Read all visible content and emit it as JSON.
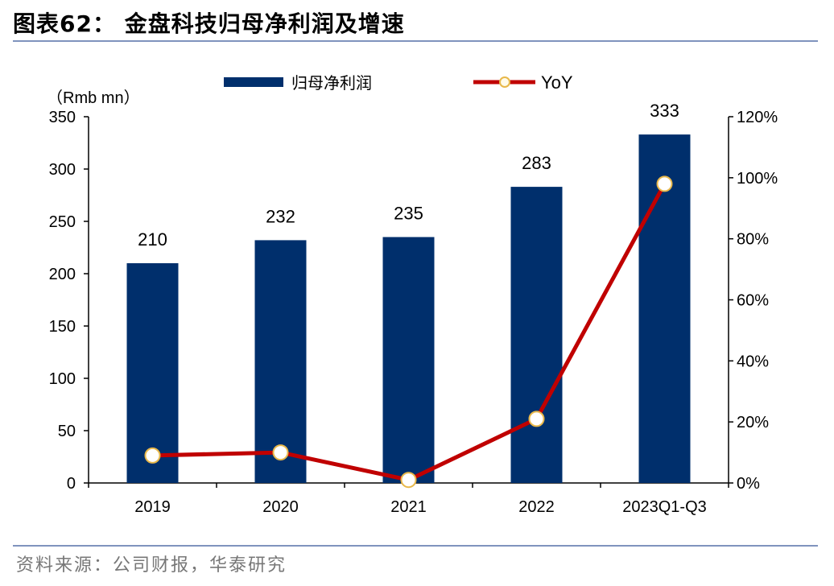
{
  "header": {
    "title": "图表62：  金盘科技归母净利润及增速"
  },
  "footer": {
    "source": "资料来源：公司财报，华泰研究"
  },
  "chart_data": {
    "type": "bar",
    "categories": [
      "2019",
      "2020",
      "2021",
      "2022",
      "2023Q1-Q3"
    ],
    "series": [
      {
        "name": "归母净利润",
        "type": "bar",
        "axis": "left",
        "values": [
          210,
          232,
          235,
          283,
          333
        ],
        "color": "#002f6c"
      },
      {
        "name": "YoY",
        "type": "line",
        "axis": "right",
        "values": [
          9,
          10,
          1,
          21,
          98
        ],
        "color": "#c00000"
      }
    ],
    "y_left": {
      "unit_label": "（Rmb mn）",
      "range": [
        0,
        350
      ],
      "ticks": [
        "0",
        "50",
        "100",
        "150",
        "200",
        "250",
        "300",
        "350"
      ]
    },
    "y_right": {
      "range": [
        0,
        120
      ],
      "ticks": [
        "0%",
        "20%",
        "40%",
        "60%",
        "80%",
        "100%",
        "120%"
      ]
    },
    "data_labels": [
      "210",
      "232",
      "235",
      "283",
      "333"
    ],
    "legend": {
      "position": "top",
      "items": [
        "归母净利润",
        "YoY"
      ]
    },
    "grid": false
  }
}
